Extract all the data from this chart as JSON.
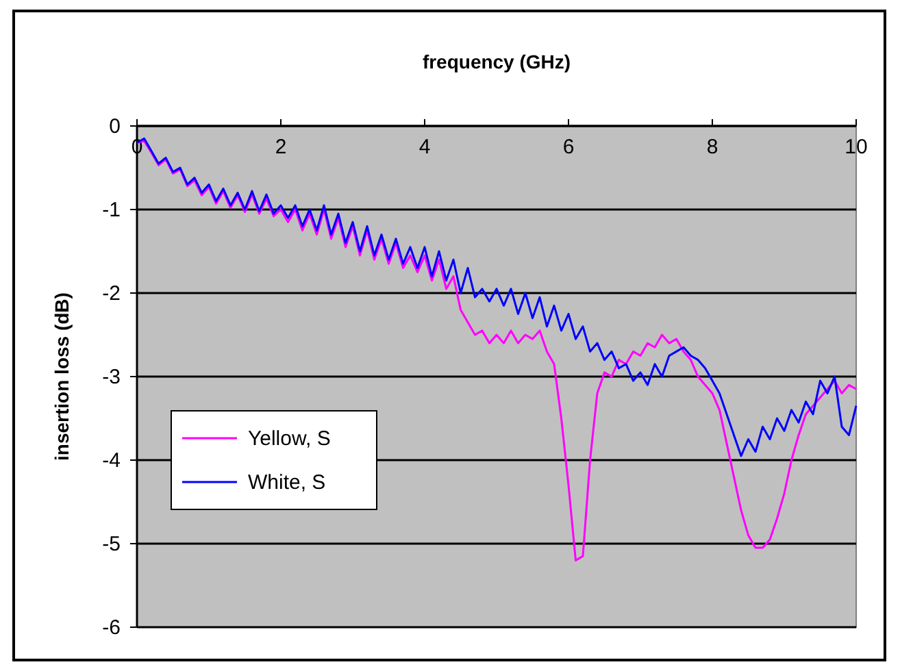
{
  "chart_data": {
    "type": "line",
    "xlabel": "frequency (GHz)",
    "ylabel": "insertion loss (dB)",
    "x": [
      0,
      0.1,
      0.2,
      0.3,
      0.4,
      0.5,
      0.6,
      0.7,
      0.8,
      0.9,
      1,
      1.1,
      1.2,
      1.3,
      1.4,
      1.5,
      1.6,
      1.7,
      1.8,
      1.9,
      2,
      2.1,
      2.2,
      2.3,
      2.4,
      2.5,
      2.6,
      2.7,
      2.8,
      2.9,
      3,
      3.1,
      3.2,
      3.3,
      3.4,
      3.5,
      3.6,
      3.7,
      3.8,
      3.9,
      4,
      4.1,
      4.2,
      4.3,
      4.4,
      4.5,
      4.6,
      4.7,
      4.8,
      4.9,
      5,
      5.1,
      5.2,
      5.3,
      5.4,
      5.5,
      5.6,
      5.7,
      5.8,
      5.9,
      6,
      6.1,
      6.2,
      6.3,
      6.4,
      6.5,
      6.6,
      6.7,
      6.8,
      6.9,
      7,
      7.1,
      7.2,
      7.3,
      7.4,
      7.5,
      7.6,
      7.7,
      7.8,
      7.9,
      8,
      8.1,
      8.2,
      8.3,
      8.4,
      8.5,
      8.6,
      8.7,
      8.8,
      8.9,
      9,
      9.1,
      9.2,
      9.3,
      9.4,
      9.5,
      9.6,
      9.7,
      9.8,
      9.9,
      10
    ],
    "series": [
      {
        "name": "Yellow, S",
        "color": "#ff00ff",
        "values": [
          -0.2,
          -0.18,
          -0.32,
          -0.47,
          -0.4,
          -0.57,
          -0.52,
          -0.72,
          -0.65,
          -0.83,
          -0.73,
          -0.93,
          -0.78,
          -0.98,
          -0.83,
          -1.03,
          -0.82,
          -1.05,
          -0.87,
          -1.08,
          -1.0,
          -1.15,
          -1.0,
          -1.25,
          -1.05,
          -1.3,
          -1.0,
          -1.35,
          -1.1,
          -1.45,
          -1.2,
          -1.55,
          -1.25,
          -1.6,
          -1.35,
          -1.65,
          -1.4,
          -1.7,
          -1.55,
          -1.75,
          -1.55,
          -1.85,
          -1.6,
          -1.95,
          -1.8,
          -2.2,
          -2.35,
          -2.5,
          -2.45,
          -2.6,
          -2.5,
          -2.6,
          -2.45,
          -2.6,
          -2.5,
          -2.55,
          -2.45,
          -2.7,
          -2.85,
          -3.5,
          -4.3,
          -5.2,
          -5.15,
          -4.0,
          -3.2,
          -2.95,
          -3.0,
          -2.8,
          -2.85,
          -2.7,
          -2.75,
          -2.6,
          -2.65,
          -2.5,
          -2.6,
          -2.55,
          -2.7,
          -2.8,
          -3.0,
          -3.1,
          -3.2,
          -3.4,
          -3.8,
          -4.2,
          -4.6,
          -4.9,
          -5.05,
          -5.05,
          -4.95,
          -4.7,
          -4.4,
          -4.0,
          -3.7,
          -3.45,
          -3.35,
          -3.25,
          -3.15,
          -3.05,
          -3.2,
          -3.1,
          -3.15
        ]
      },
      {
        "name": "White, S",
        "color": "#0000ff",
        "values": [
          -0.2,
          -0.15,
          -0.3,
          -0.45,
          -0.38,
          -0.55,
          -0.5,
          -0.7,
          -0.62,
          -0.8,
          -0.7,
          -0.9,
          -0.75,
          -0.95,
          -0.8,
          -1.0,
          -0.78,
          -1.02,
          -0.82,
          -1.05,
          -0.95,
          -1.1,
          -0.95,
          -1.2,
          -1.0,
          -1.25,
          -0.95,
          -1.3,
          -1.05,
          -1.4,
          -1.15,
          -1.5,
          -1.2,
          -1.55,
          -1.3,
          -1.6,
          -1.35,
          -1.65,
          -1.45,
          -1.7,
          -1.45,
          -1.8,
          -1.5,
          -1.85,
          -1.6,
          -2.0,
          -1.7,
          -2.05,
          -1.95,
          -2.1,
          -1.95,
          -2.15,
          -1.95,
          -2.25,
          -2.0,
          -2.3,
          -2.05,
          -2.4,
          -2.15,
          -2.45,
          -2.25,
          -2.55,
          -2.4,
          -2.7,
          -2.6,
          -2.8,
          -2.7,
          -2.9,
          -2.85,
          -3.05,
          -2.95,
          -3.1,
          -2.85,
          -3.0,
          -2.75,
          -2.7,
          -2.65,
          -2.75,
          -2.8,
          -2.9,
          -3.05,
          -3.2,
          -3.45,
          -3.7,
          -3.95,
          -3.75,
          -3.9,
          -3.6,
          -3.75,
          -3.5,
          -3.65,
          -3.4,
          -3.55,
          -3.3,
          -3.45,
          -3.05,
          -3.2,
          -3.0,
          -3.6,
          -3.7,
          -3.35
        ]
      }
    ],
    "xlim": [
      0,
      10
    ],
    "xticks": [
      0,
      2,
      4,
      6,
      8,
      10
    ],
    "ylim": [
      -6,
      0
    ],
    "yticks": [
      0,
      -1,
      -2,
      -3,
      -4,
      -5,
      -6
    ],
    "grid": "y",
    "legend": "bottom left",
    "marker": "none",
    "line_style": "solid"
  }
}
